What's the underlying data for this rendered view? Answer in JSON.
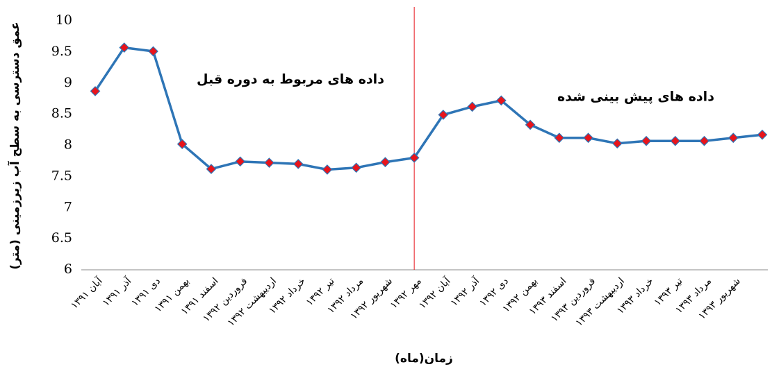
{
  "chart_data": {
    "type": "line",
    "y_axis_title": "عمق دسترسی به سطح آب زیرزمینی (متر)",
    "x_axis_title": "زمان(ماه)",
    "annotations": [
      "داده های مربوط به دوره قبل",
      "داده های پیش بینی شده"
    ],
    "categories": [
      "آبان ۱۳۹۱",
      "آذر ۱۳۹۱",
      "دی ۱۳۹۱",
      "بهمن ۱۳۹۱",
      "اسفند ۱۳۹۱",
      "فروردین ۱۳۹۲",
      "اردیبهشت ۱۳۹۲",
      "خرداد ۱۳۹۲",
      "تیر ۱۳۹۲",
      "مرداد ۱۳۹۲",
      "شهریور ۱۳۹۲",
      "مهر ۱۳۹۲",
      "آبان ۱۳۹۲",
      "آذر ۱۳۹۲",
      "دی ۱۳۹۲",
      "بهمن ۱۳۹۲",
      "اسفند ۱۳۹۳",
      "فروردین ۱۳۹۳",
      "اردیبهشت ۱۳۹۳",
      "خرداد ۱۳۹۳",
      "تیر ۱۳۹۳",
      "مرداد ۱۳۹۳",
      "شهریور ۱۳۹۳",
      null
    ],
    "values": [
      8.87,
      9.57,
      9.51,
      8.02,
      7.62,
      7.74,
      7.72,
      7.7,
      7.61,
      7.64,
      7.73,
      7.8,
      8.49,
      8.62,
      8.72,
      8.33,
      8.12,
      8.12,
      8.03,
      8.07,
      8.07,
      8.07,
      8.12,
      8.17
    ],
    "color": "#2e75b6",
    "marker_color": "#e8141b",
    "divider_color": "#e8141b",
    "ylim": [
      6,
      10
    ],
    "yticks": [
      6,
      6.5,
      7,
      7.5,
      8,
      8.5,
      9,
      9.5,
      10
    ]
  }
}
